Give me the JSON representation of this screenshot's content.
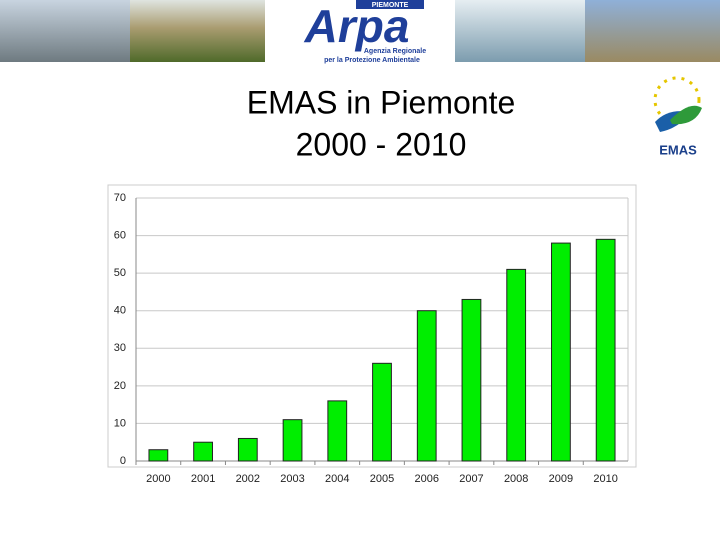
{
  "header": {
    "region": "PIEMONTE",
    "logo": "Arpa",
    "agency_line1": "Agenzia Regionale",
    "agency_line2": "per la Protezione Ambientale",
    "emas": "EMAS"
  },
  "chart_data": {
    "type": "bar",
    "title": "EMAS in Piemonte",
    "subtitle": "2000 - 2010",
    "categories": [
      "2000",
      "2001",
      "2002",
      "2003",
      "2004",
      "2005",
      "2006",
      "2007",
      "2008",
      "2009",
      "2010"
    ],
    "values": [
      3,
      5,
      6,
      11,
      16,
      26,
      40,
      43,
      51,
      58,
      59
    ],
    "color": "#00ee00",
    "ylim": [
      0,
      70
    ],
    "yticks": [
      0,
      10,
      20,
      30,
      40,
      50,
      60,
      70
    ],
    "grid": true
  }
}
